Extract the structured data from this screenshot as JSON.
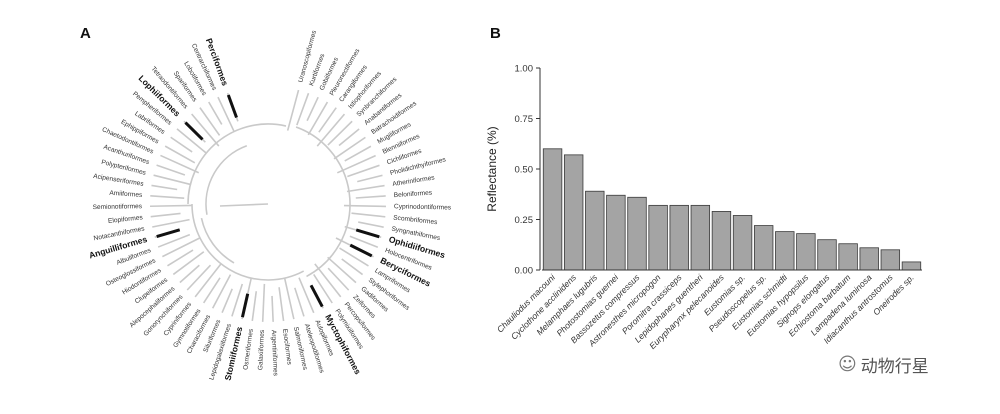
{
  "chart_data": [
    {
      "type": "tree",
      "panel_label": "A",
      "orders": [
        "Uranoscopiformes",
        "Kurtiformes",
        "Gobiiformes",
        "Pleuronectiformes",
        "Carangiformes",
        "Istiophoriformes",
        "Synbranchiformes",
        "Anabantiformes",
        "Batrachoidiformes",
        "Mugiliformes",
        "Blenniiformes",
        "Cichliformes",
        "Pholidichthyiformes",
        "Atheriniformes",
        "Beloniformes",
        "Cyprinodontiformes",
        "Scombriformes",
        "Syngnathiformes",
        "Ophidiiformes",
        "Holocentriformes",
        "Beryciformes",
        "Lampriformes",
        "Stylephoriformes",
        "Gadiformes",
        "Zeiformes",
        "Percopsiformes",
        "Polymixiiformes",
        "Myctophiformes",
        "Aulopiformes",
        "Ateleopodiformes",
        "Salmoniformes",
        "Esociformes",
        "Argentiniformes",
        "Galaxiiformes",
        "Osmeriformes",
        "Stomiiformes",
        "Lepidogalaxiiformes",
        "Siluriformes",
        "Characiformes",
        "Gymnotiformes",
        "Cypriniformes",
        "Gonorynchiformes",
        "Alepocephaliformes",
        "Clupeiformes",
        "Hiodontiformes",
        "Osteoglossiformes",
        "Albuliformes",
        "Anguilliformes",
        "Notacanthiformes",
        "Elopiformes",
        "Semionotiformes",
        "Amiiformes",
        "Acipenseriformes",
        "Polypteriformes",
        "Acanthuriformes",
        "Chaetodontiformes",
        "Ephippiformes",
        "Labriformes",
        "Pempheriformes",
        "Lophiiformes",
        "Tetraodontiformes",
        "Spariformes",
        "Lobotiformes",
        "Centrarchiformes",
        "Perciformes"
      ],
      "highlighted": [
        "Perciformes",
        "Lophiiformes",
        "Ophidiiformes",
        "Beryciformes",
        "Myctophiformes",
        "Stomiiformes",
        "Anguilliformes"
      ]
    },
    {
      "type": "bar",
      "panel_label": "B",
      "categories": [
        "Chauliodus macouni",
        "Cyclothone acclinidens",
        "Melamphaes lugubris",
        "Photostomias guernei",
        "Bassozetus compressus",
        "Astronesthes micropogon",
        "Poromitra crassiceps",
        "Lepidophanes guentheri",
        "Eurypharynx pelecanoides",
        "Eustomias sp.",
        "Pseudoscopelus sp.",
        "Eustomias schmidti",
        "Eustomias hypopsilus",
        "Signops elongatus",
        "Echiostoma barbatum",
        "Lampadena luminosa",
        "Idiacanthus antrostomus",
        "Oneirodes sp."
      ],
      "values": [
        0.6,
        0.57,
        0.39,
        0.37,
        0.36,
        0.32,
        0.32,
        0.32,
        0.29,
        0.27,
        0.22,
        0.19,
        0.18,
        0.15,
        0.13,
        0.11,
        0.1,
        0.04
      ],
      "ylabel": "Reflectance (%)",
      "xlabel": "",
      "ylim": [
        0,
        1.0
      ],
      "yticks": [
        "0.00",
        "0.25",
        "0.50",
        "0.75",
        "1.00"
      ],
      "grid": false,
      "bar_color": "#a4a4a4"
    }
  ],
  "watermark": {
    "icon": "wechat-icon",
    "text": "动物行星"
  }
}
